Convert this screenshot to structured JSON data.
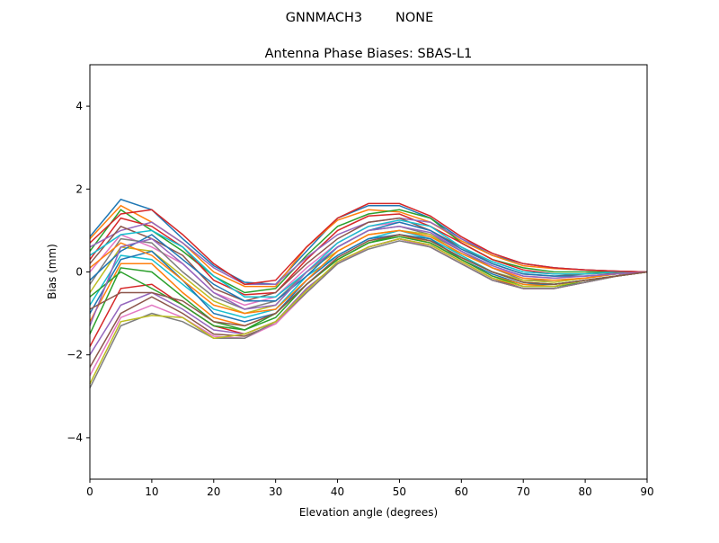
{
  "chart_data": {
    "type": "line",
    "suptitle": "GNNMACH3        NONE",
    "title": "Antenna Phase Biases: SBAS-L1",
    "xlabel": "Elevation angle (degrees)",
    "ylabel": "Bias (mm)",
    "xlim": [
      0,
      90
    ],
    "ylim": [
      -5,
      5
    ],
    "xticks": [
      0,
      10,
      20,
      30,
      40,
      50,
      60,
      70,
      80,
      90
    ],
    "yticks": [
      -4,
      -2,
      0,
      2,
      4
    ],
    "ytick_labels": [
      "−4",
      "−2",
      "0",
      "2",
      "4"
    ],
    "grid": false,
    "colors": [
      "#1f77b4",
      "#ff7f0e",
      "#2ca02c",
      "#d62728",
      "#9467bd",
      "#8c564b",
      "#e377c2",
      "#7f7f7f",
      "#bcbd22",
      "#17becf"
    ],
    "x": [
      0,
      5,
      10,
      15,
      20,
      25,
      30,
      35,
      40,
      45,
      50,
      55,
      60,
      65,
      70,
      75,
      80,
      85,
      90
    ],
    "series": [
      {
        "values": [
          0.85,
          1.75,
          1.5,
          0.8,
          0.15,
          -0.25,
          -0.3,
          0.5,
          1.3,
          1.6,
          1.6,
          1.3,
          0.8,
          0.4,
          0.2,
          0.1,
          0.05,
          0.02,
          0
        ]
      },
      {
        "values": [
          0.8,
          1.6,
          1.2,
          0.7,
          0.0,
          -0.35,
          -0.35,
          0.6,
          1.25,
          1.5,
          1.45,
          1.2,
          0.75,
          0.4,
          0.15,
          0.08,
          0.05,
          0.02,
          0
        ]
      },
      {
        "values": [
          0.5,
          1.5,
          1.0,
          0.5,
          -0.1,
          -0.5,
          -0.4,
          0.4,
          1.1,
          1.4,
          1.5,
          1.3,
          0.7,
          0.3,
          0.1,
          0.0,
          0.0,
          0.0,
          0
        ]
      },
      {
        "values": [
          0.3,
          1.3,
          1.1,
          0.6,
          -0.2,
          -0.55,
          -0.5,
          0.3,
          1.0,
          1.35,
          1.4,
          1.1,
          0.7,
          0.3,
          0.05,
          -0.05,
          -0.05,
          0.0,
          0
        ]
      },
      {
        "values": [
          0.6,
          1.0,
          1.2,
          0.7,
          0.1,
          -0.3,
          -0.3,
          0.35,
          0.9,
          1.2,
          1.3,
          1.2,
          0.8,
          0.45,
          0.2,
          0.1,
          0.05,
          0.02,
          0
        ]
      },
      {
        "values": [
          0.2,
          1.1,
          0.8,
          0.4,
          -0.4,
          -0.7,
          -0.5,
          0.2,
          0.8,
          1.2,
          1.3,
          1.0,
          0.6,
          0.2,
          -0.05,
          -0.1,
          -0.05,
          -0.02,
          0
        ]
      },
      {
        "values": [
          0.0,
          0.9,
          0.6,
          0.2,
          -0.5,
          -0.8,
          -0.6,
          0.1,
          0.7,
          1.1,
          1.2,
          1.0,
          0.5,
          0.1,
          -0.1,
          -0.15,
          -0.1,
          -0.05,
          0
        ]
      },
      {
        "values": [
          -0.3,
          0.8,
          0.7,
          0.0,
          -0.6,
          -0.9,
          -0.7,
          0.0,
          0.6,
          1.0,
          1.1,
          0.9,
          0.5,
          0.1,
          -0.2,
          -0.2,
          -0.15,
          -0.05,
          0
        ]
      },
      {
        "values": [
          -0.5,
          0.6,
          0.5,
          -0.1,
          -0.7,
          -1.0,
          -0.8,
          0.0,
          0.5,
          0.9,
          1.0,
          0.9,
          0.4,
          0.0,
          -0.2,
          -0.25,
          -0.15,
          -0.05,
          0
        ]
      },
      {
        "values": [
          -0.8,
          0.4,
          0.3,
          -0.3,
          -0.9,
          -1.1,
          -0.9,
          -0.1,
          0.4,
          0.8,
          1.0,
          0.8,
          0.4,
          0.0,
          -0.25,
          -0.3,
          -0.2,
          -0.1,
          0
        ]
      },
      {
        "values": [
          -1.0,
          0.3,
          0.5,
          -0.2,
          -1.0,
          -1.2,
          -1.0,
          -0.2,
          0.4,
          0.8,
          0.9,
          0.8,
          0.3,
          -0.05,
          -0.3,
          -0.3,
          -0.2,
          -0.1,
          0
        ]
      },
      {
        "values": [
          -1.2,
          0.2,
          0.2,
          -0.5,
          -1.1,
          -1.3,
          -1.0,
          -0.3,
          0.3,
          0.7,
          0.9,
          0.7,
          0.3,
          -0.1,
          -0.3,
          -0.35,
          -0.2,
          -0.1,
          0
        ]
      },
      {
        "values": [
          -1.5,
          0.1,
          0.0,
          -0.6,
          -1.2,
          -1.4,
          -1.1,
          -0.3,
          0.3,
          0.7,
          0.85,
          0.7,
          0.3,
          -0.1,
          -0.35,
          -0.35,
          -0.25,
          -0.1,
          0
        ]
      },
      {
        "values": [
          -1.8,
          -0.4,
          -0.3,
          -0.8,
          -1.3,
          -1.5,
          -1.2,
          -0.4,
          0.2,
          0.6,
          0.8,
          0.65,
          0.25,
          -0.15,
          -0.4,
          -0.4,
          -0.25,
          -0.1,
          0
        ]
      },
      {
        "values": [
          -2.0,
          -0.8,
          -0.5,
          -0.9,
          -1.4,
          -1.5,
          -1.2,
          -0.4,
          0.2,
          0.6,
          0.8,
          0.6,
          0.2,
          -0.2,
          -0.4,
          -0.4,
          -0.25,
          -0.1,
          0
        ]
      },
      {
        "values": [
          -2.3,
          -1.0,
          -0.6,
          -1.0,
          -1.5,
          -1.55,
          -1.25,
          -0.5,
          0.2,
          0.6,
          0.8,
          0.6,
          0.2,
          -0.2,
          -0.4,
          -0.4,
          -0.25,
          -0.1,
          0
        ]
      },
      {
        "values": [
          -2.5,
          -1.1,
          -0.8,
          -1.1,
          -1.55,
          -1.6,
          -1.25,
          -0.5,
          0.2,
          0.6,
          0.8,
          0.6,
          0.2,
          -0.2,
          -0.4,
          -0.4,
          -0.25,
          -0.1,
          0
        ]
      },
      {
        "values": [
          -2.8,
          -1.3,
          -1.0,
          -1.2,
          -1.6,
          -1.6,
          -1.2,
          -0.5,
          0.2,
          0.55,
          0.75,
          0.6,
          0.2,
          -0.2,
          -0.4,
          -0.4,
          -0.25,
          -0.1,
          0
        ]
      },
      {
        "values": [
          -2.7,
          -1.2,
          -1.05,
          -1.1,
          -1.6,
          -1.5,
          -1.2,
          -0.45,
          0.25,
          0.6,
          0.8,
          0.65,
          0.25,
          -0.15,
          -0.35,
          -0.35,
          -0.2,
          -0.1,
          0
        ]
      },
      {
        "values": [
          0.4,
          0.9,
          1.0,
          0.6,
          -0.1,
          -0.6,
          -0.6,
          0.0,
          0.7,
          1.1,
          1.25,
          1.1,
          0.6,
          0.25,
          0.0,
          -0.05,
          -0.05,
          0.0,
          0
        ]
      },
      {
        "values": [
          -0.2,
          0.5,
          0.9,
          0.3,
          -0.3,
          -0.7,
          -0.7,
          -0.1,
          0.6,
          1.0,
          1.2,
          1.0,
          0.55,
          0.2,
          -0.05,
          -0.1,
          -0.1,
          -0.05,
          0
        ]
      },
      {
        "values": [
          0.1,
          0.7,
          0.4,
          -0.2,
          -0.8,
          -1.0,
          -0.9,
          -0.2,
          0.5,
          0.9,
          1.0,
          0.85,
          0.45,
          0.1,
          -0.15,
          -0.2,
          -0.15,
          -0.05,
          0
        ]
      },
      {
        "values": [
          -0.6,
          0.0,
          -0.4,
          -0.8,
          -1.3,
          -1.4,
          -1.0,
          -0.3,
          0.3,
          0.7,
          0.9,
          0.75,
          0.35,
          0.0,
          -0.25,
          -0.3,
          -0.2,
          -0.1,
          0
        ]
      },
      {
        "values": [
          0.7,
          1.4,
          1.5,
          0.9,
          0.2,
          -0.3,
          -0.2,
          0.6,
          1.3,
          1.65,
          1.65,
          1.35,
          0.85,
          0.45,
          0.2,
          0.1,
          0.05,
          0.02,
          0
        ]
      },
      {
        "values": [
          -1.3,
          0.6,
          0.8,
          0.2,
          -0.5,
          -0.9,
          -0.8,
          0.0,
          0.6,
          1.0,
          1.1,
          0.95,
          0.5,
          0.15,
          -0.1,
          -0.15,
          -0.1,
          -0.05,
          0
        ]
      },
      {
        "values": [
          -0.9,
          -0.5,
          -0.5,
          -0.7,
          -1.2,
          -1.3,
          -1.0,
          -0.3,
          0.35,
          0.75,
          0.9,
          0.75,
          0.35,
          0.0,
          -0.25,
          -0.3,
          -0.2,
          -0.1,
          0
        ]
      }
    ]
  }
}
